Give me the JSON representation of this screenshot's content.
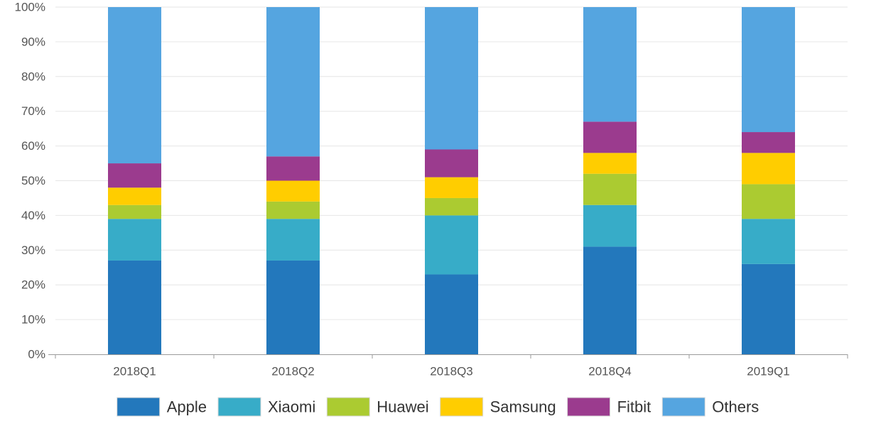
{
  "chart_data": {
    "type": "bar",
    "stacked": true,
    "title": "",
    "xlabel": "",
    "ylabel": "",
    "categories": [
      "2018Q1",
      "2018Q2",
      "2018Q3",
      "2018Q4",
      "2019Q1"
    ],
    "ylim": [
      0,
      100
    ],
    "y_ticks": [
      0,
      10,
      20,
      30,
      40,
      50,
      60,
      70,
      80,
      90,
      100
    ],
    "y_tick_labels": [
      "0%",
      "10%",
      "20%",
      "30%",
      "40%",
      "50%",
      "60%",
      "70%",
      "80%",
      "90%",
      "100%"
    ],
    "grid": true,
    "legend_position": "bottom",
    "series": [
      {
        "name": "Apple",
        "color": "#2378BC",
        "values": [
          27,
          27,
          23,
          31,
          26
        ]
      },
      {
        "name": "Xiaomi",
        "color": "#37ACC8",
        "values": [
          12,
          12,
          17,
          12,
          13
        ]
      },
      {
        "name": "Huawei",
        "color": "#ABCB31",
        "values": [
          4,
          5,
          5,
          9,
          10
        ]
      },
      {
        "name": "Samsung",
        "color": "#FFCD00",
        "values": [
          5,
          6,
          6,
          6,
          9
        ]
      },
      {
        "name": "Fitbit",
        "color": "#9B3B8E",
        "values": [
          7,
          7,
          8,
          9,
          6
        ]
      },
      {
        "name": "Others",
        "color": "#55A5E0",
        "values": [
          45,
          43,
          41,
          33,
          36
        ]
      }
    ]
  }
}
